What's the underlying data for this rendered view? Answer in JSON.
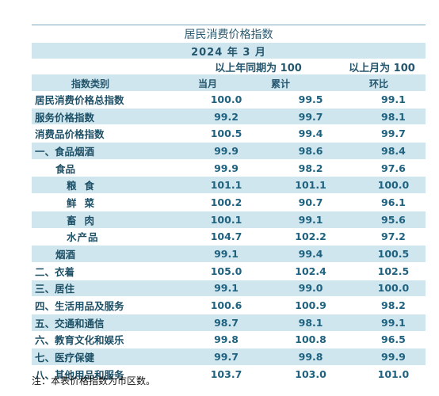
{
  "title": "居民消费价格指数",
  "period": "2024 年 3 月",
  "base_labels": {
    "yoy": "以上年同期为 100",
    "mom": "以上月为 100"
  },
  "headers": {
    "category": "指数类别",
    "current": "当月",
    "cumulative": "累计",
    "mom": "环比"
  },
  "rows": [
    {
      "name": "居民消费价格总指数",
      "current": "100.0",
      "cumulative": "99.5",
      "mom": "99.1",
      "level": 0
    },
    {
      "name": "服务价格指数",
      "current": "99.2",
      "cumulative": "99.7",
      "mom": "98.1",
      "level": 0
    },
    {
      "name": "消费品价格指数",
      "current": "100.5",
      "cumulative": "99.4",
      "mom": "99.7",
      "level": 0
    },
    {
      "name": "一、食品烟酒",
      "current": "99.9",
      "cumulative": "98.6",
      "mom": "98.4",
      "level": 0
    },
    {
      "name": "食品",
      "current": "99.9",
      "cumulative": "98.2",
      "mom": "97.6",
      "level": 1
    },
    {
      "name": "粮食",
      "current": "101.1",
      "cumulative": "101.1",
      "mom": "100.0",
      "level": 3
    },
    {
      "name": "鲜菜",
      "current": "100.2",
      "cumulative": "90.7",
      "mom": "96.1",
      "level": 3
    },
    {
      "name": "畜肉",
      "current": "100.1",
      "cumulative": "99.1",
      "mom": "95.6",
      "level": 3
    },
    {
      "name": "水产品",
      "current": "104.7",
      "cumulative": "102.2",
      "mom": "97.2",
      "level": 2
    },
    {
      "name": "烟酒",
      "current": "99.1",
      "cumulative": "99.4",
      "mom": "100.5",
      "level": 1
    },
    {
      "name": "二、衣着",
      "current": "105.0",
      "cumulative": "102.4",
      "mom": "102.5",
      "level": 0
    },
    {
      "name": "三、居住",
      "current": "99.1",
      "cumulative": "99.0",
      "mom": "100.0",
      "level": 0
    },
    {
      "name": "四、生活用品及服务",
      "current": "100.6",
      "cumulative": "100.9",
      "mom": "98.2",
      "level": 0
    },
    {
      "name": "五、交通和通信",
      "current": "98.7",
      "cumulative": "98.1",
      "mom": "99.1",
      "level": 0
    },
    {
      "name": "六、教育文化和娱乐",
      "current": "99.8",
      "cumulative": "100.8",
      "mom": "96.5",
      "level": 0
    },
    {
      "name": "七、医疗保健",
      "current": "99.7",
      "cumulative": "99.8",
      "mom": "99.9",
      "level": 0
    },
    {
      "name": "八、其他用品和服务",
      "current": "103.7",
      "cumulative": "103.0",
      "mom": "101.0",
      "level": 0
    }
  ],
  "note": "注：本表价格指数为市区数。"
}
